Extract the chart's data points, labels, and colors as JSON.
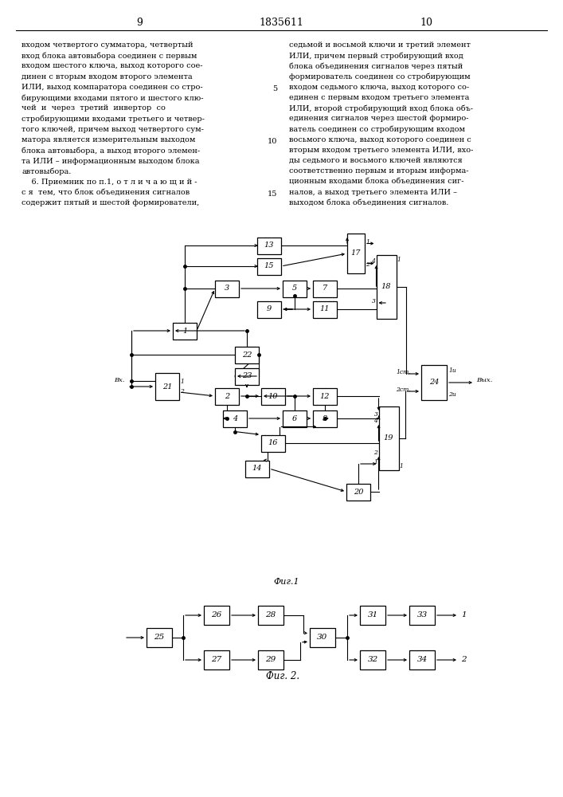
{
  "page_numbers": [
    "9",
    "1835611",
    "10"
  ],
  "left_lines": [
    "входом четвертого сумматора, четвертый",
    "вход блока автовыбора соединен с первым",
    "входом шестого ключа, выход которого сое-",
    "динен с вторым входом второго элемента",
    "ИЛИ, выход компаратора соединен со стро-",
    "бирующими входами пятого и шестого клю-",
    "чей  и  через  третий  инвертор  со",
    "стробирующими входами третьего и четвер-",
    "того ключей, причем выход четвертого сум-",
    "матора является измерительным выходом",
    "блока автовыбора, а выход второго элемен-",
    "та ИЛИ – информационным выходом блока",
    "автовыбора.",
    "    6. Приемник по п.1, о т л и ч а ю щ и й -",
    "с я  тем, что блок объединения сигналов",
    "содержит пятый и шестой формирователи,"
  ],
  "right_lines": [
    "седьмой и восьмой ключи и третий элемент",
    "ИЛИ, причем первый стробирующий вход",
    "блока объединения сигналов через пятый",
    "формирователь соединен со стробирующим",
    "входом седьмого ключа, выход которого со-",
    "единен с первым входом третьего элемента",
    "ИЛИ, второй стробирующий вход блока объ-",
    "единения сигналов через шестой формиро-",
    "ватель соединен со стробирующим входом",
    "восьмого ключа, выход которого соединен с",
    "вторым входом третьего элемента ИЛИ, вхо-",
    "ды седьмого и восьмого ключей являются",
    "соответственно первым и вторым информа-",
    "ционным входами блока объединения сиг-",
    "налов, а выход третьего элемента ИЛИ –",
    "выходом блока объединения сигналов."
  ],
  "line_numbers_at": [
    5,
    10,
    15
  ],
  "fig1_label": "Фиг.1",
  "fig2_label": "Фиг. 2.",
  "bg_color": "#ffffff"
}
